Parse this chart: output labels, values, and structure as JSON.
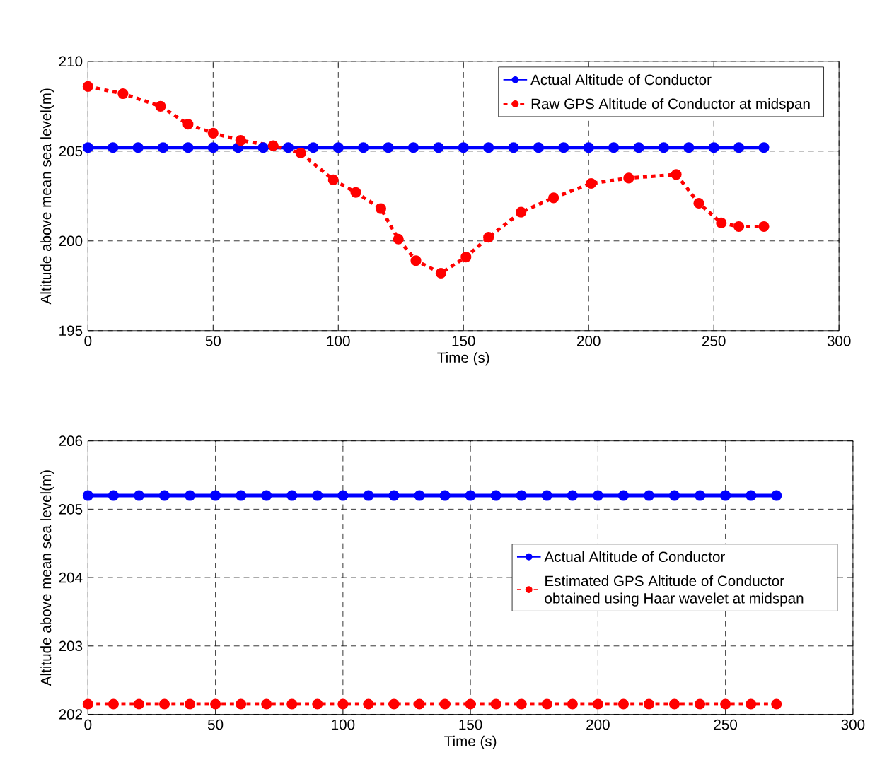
{
  "chart_data": [
    {
      "type": "line",
      "xlabel": "Time (s)",
      "ylabel": "Altitude above mean sea level(m)",
      "xlim": [
        0,
        300
      ],
      "ylim": [
        195,
        210
      ],
      "xticks": [
        0,
        50,
        100,
        150,
        200,
        250,
        300
      ],
      "yticks": [
        195,
        200,
        205,
        210
      ],
      "grid": true,
      "legend": "top right",
      "marker": "circle",
      "series": [
        {
          "name": "Actual Altitude of Conductor",
          "color": "#0000ff",
          "line_style": "solid",
          "x": [
            0,
            10,
            20,
            30,
            40,
            50,
            60,
            70,
            80,
            90,
            100,
            110,
            120,
            130,
            140,
            150,
            160,
            170,
            180,
            190,
            200,
            210,
            220,
            230,
            240,
            250,
            260,
            270
          ],
          "values": [
            205.2,
            205.2,
            205.2,
            205.2,
            205.2,
            205.2,
            205.2,
            205.2,
            205.2,
            205.2,
            205.2,
            205.2,
            205.2,
            205.2,
            205.2,
            205.2,
            205.2,
            205.2,
            205.2,
            205.2,
            205.2,
            205.2,
            205.2,
            205.2,
            205.2,
            205.2,
            205.2,
            205.2
          ]
        },
        {
          "name": "Raw GPS Altitude of Conductor at midspan",
          "color": "#ff0000",
          "line_style": "dashed",
          "x": [
            0,
            14,
            29,
            40,
            50,
            61,
            74,
            85,
            98,
            107,
            117,
            124,
            131,
            141,
            151,
            160,
            173,
            186,
            201,
            216,
            235,
            244,
            253,
            260,
            270
          ],
          "values": [
            208.6,
            208.2,
            207.5,
            206.5,
            206.0,
            205.6,
            205.3,
            204.9,
            203.4,
            202.7,
            201.8,
            200.1,
            198.9,
            198.2,
            199.1,
            200.2,
            201.6,
            202.4,
            203.2,
            203.5,
            203.7,
            202.1,
            201.0,
            200.8,
            200.8
          ]
        }
      ]
    },
    {
      "type": "line",
      "xlabel": "Time (s)",
      "ylabel": "Altitude above mean sea level(m)",
      "xlim": [
        0,
        300
      ],
      "ylim": [
        202,
        206
      ],
      "xticks": [
        0,
        50,
        100,
        150,
        200,
        250,
        300
      ],
      "yticks": [
        202,
        203,
        204,
        205,
        206
      ],
      "grid": true,
      "legend": "right",
      "marker": "circle",
      "series": [
        {
          "name": "Actual Altitude of Conductor",
          "color": "#0000ff",
          "line_style": "solid",
          "x": [
            0,
            10,
            20,
            30,
            40,
            50,
            60,
            70,
            80,
            90,
            100,
            110,
            120,
            130,
            140,
            150,
            160,
            170,
            180,
            190,
            200,
            210,
            220,
            230,
            240,
            250,
            260,
            270
          ],
          "values": [
            205.2,
            205.2,
            205.2,
            205.2,
            205.2,
            205.2,
            205.2,
            205.2,
            205.2,
            205.2,
            205.2,
            205.2,
            205.2,
            205.2,
            205.2,
            205.2,
            205.2,
            205.2,
            205.2,
            205.2,
            205.2,
            205.2,
            205.2,
            205.2,
            205.2,
            205.2,
            205.2,
            205.2
          ]
        },
        {
          "name": "Estimated GPS Altitude of Conductor obtained using Haar wavelet at midspan",
          "color": "#ff0000",
          "line_style": "dashed",
          "x": [
            0,
            10,
            20,
            30,
            40,
            50,
            60,
            70,
            80,
            90,
            100,
            110,
            120,
            130,
            140,
            150,
            160,
            170,
            180,
            190,
            200,
            210,
            220,
            230,
            240,
            250,
            260,
            270
          ],
          "values": [
            202.15,
            202.15,
            202.15,
            202.15,
            202.15,
            202.15,
            202.15,
            202.15,
            202.15,
            202.15,
            202.15,
            202.15,
            202.15,
            202.15,
            202.15,
            202.15,
            202.15,
            202.15,
            202.15,
            202.15,
            202.15,
            202.15,
            202.15,
            202.15,
            202.15,
            202.15,
            202.15,
            202.15
          ]
        }
      ]
    }
  ]
}
